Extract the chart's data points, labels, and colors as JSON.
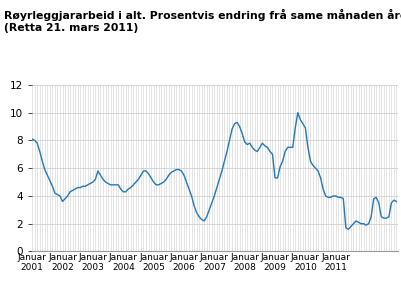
{
  "title_line1": "Røyrleggjararbeid i alt. Prosentvis endring frå same månaden året før",
  "title_line2": "(Retta 21. mars 2011)",
  "line_color": "#2677B5",
  "background_color": "#ffffff",
  "plot_bg_color": "#ffffff",
  "grid_color": "#d0d0d0",
  "ylim": [
    0,
    12
  ],
  "yticks": [
    0,
    2,
    4,
    6,
    8,
    10,
    12
  ],
  "xlabel_years": [
    2001,
    2002,
    2003,
    2004,
    2005,
    2006,
    2007,
    2008,
    2009,
    2010,
    2011
  ],
  "values": [
    8.1,
    8.0,
    7.8,
    7.2,
    6.5,
    5.9,
    5.5,
    5.1,
    4.7,
    4.2,
    4.1,
    4.0,
    3.6,
    3.8,
    4.0,
    4.3,
    4.4,
    4.5,
    4.6,
    4.6,
    4.7,
    4.7,
    4.8,
    4.9,
    5.0,
    5.2,
    5.8,
    5.5,
    5.2,
    5.0,
    4.9,
    4.8,
    4.8,
    4.8,
    4.8,
    4.5,
    4.3,
    4.3,
    4.5,
    4.6,
    4.8,
    5.0,
    5.2,
    5.5,
    5.8,
    5.8,
    5.6,
    5.3,
    5.0,
    4.8,
    4.8,
    4.9,
    5.0,
    5.2,
    5.5,
    5.7,
    5.8,
    5.9,
    5.9,
    5.8,
    5.5,
    5.0,
    4.5,
    4.0,
    3.3,
    2.8,
    2.5,
    2.3,
    2.2,
    2.5,
    3.0,
    3.5,
    4.0,
    4.6,
    5.2,
    5.8,
    6.5,
    7.2,
    8.0,
    8.8,
    9.2,
    9.3,
    9.0,
    8.5,
    7.9,
    7.7,
    7.8,
    7.5,
    7.3,
    7.2,
    7.5,
    7.8,
    7.6,
    7.5,
    7.2,
    7.0,
    5.3,
    5.3,
    6.1,
    6.5,
    7.2,
    7.5,
    7.5,
    7.5,
    8.9,
    10.0,
    9.5,
    9.2,
    8.9,
    7.5,
    6.5,
    6.2,
    6.0,
    5.8,
    5.3,
    4.5,
    4.0,
    3.9,
    3.9,
    4.0,
    4.0,
    3.9,
    3.9,
    3.8,
    1.7,
    1.6,
    1.8,
    2.0,
    2.2,
    2.1,
    2.0,
    2.0,
    1.9,
    2.0,
    2.5,
    3.8,
    3.9,
    3.5,
    2.5,
    2.4,
    2.4,
    2.5,
    3.5,
    3.7,
    3.6
  ]
}
